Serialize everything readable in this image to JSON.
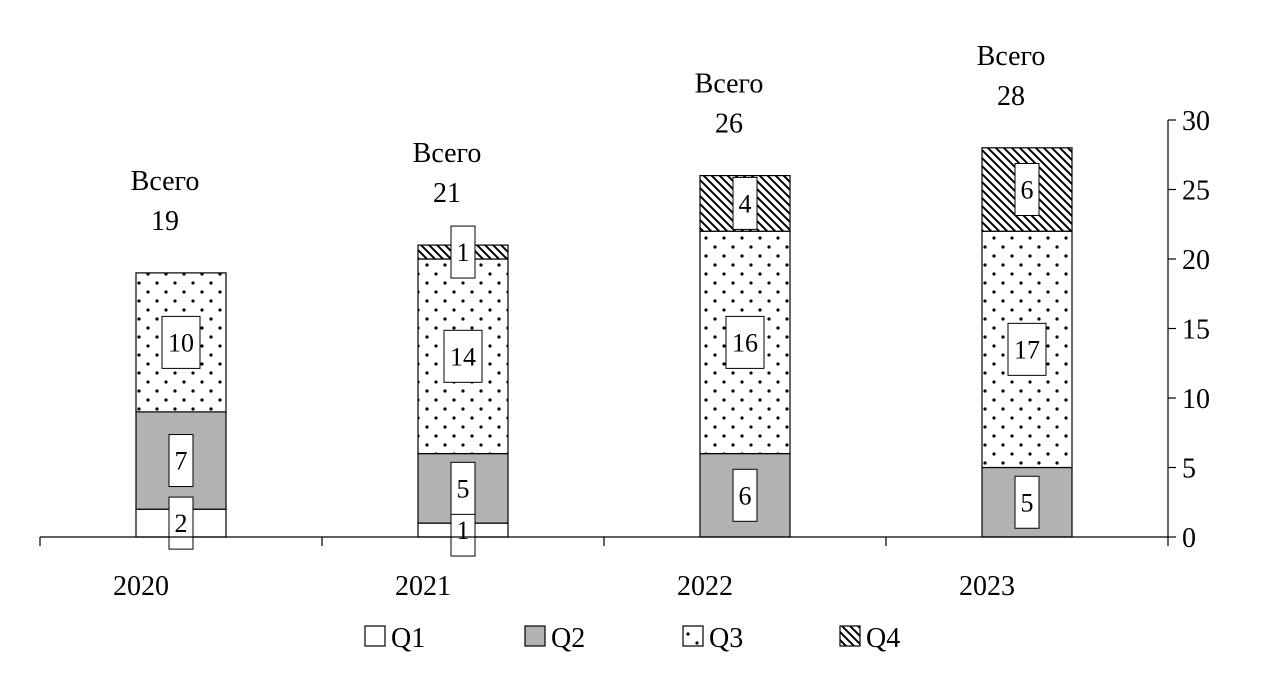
{
  "chart_data": {
    "type": "bar",
    "stacked": true,
    "categories": [
      "2020",
      "2021",
      "2022",
      "2023"
    ],
    "series": [
      {
        "name": "Q1",
        "values": [
          2,
          1,
          0,
          0
        ]
      },
      {
        "name": "Q2",
        "values": [
          7,
          5,
          6,
          5
        ]
      },
      {
        "name": "Q3",
        "values": [
          10,
          14,
          16,
          17
        ]
      },
      {
        "name": "Q4",
        "values": [
          0,
          1,
          4,
          6
        ]
      }
    ],
    "series_fills": {
      "Q1": "white",
      "Q2": "solid-gray",
      "Q3": "dots",
      "Q4": "diagonal-hatch"
    },
    "colors": {
      "q2_fill": "#b2b2b2",
      "ink": "#000000"
    },
    "totals": [
      {
        "label": "Всего",
        "value": "19"
      },
      {
        "label": "Всего",
        "value": "21"
      },
      {
        "label": "Всего",
        "value": "26"
      },
      {
        "label": "Всего",
        "value": "28"
      }
    ],
    "y_ticks": [
      "0",
      "5",
      "10",
      "15",
      "20",
      "25",
      "30"
    ],
    "ylim": [
      0,
      30
    ],
    "y_axis_side": "right",
    "legend": [
      "Q1",
      "Q2",
      "Q3",
      "Q4"
    ],
    "legend_position": "bottom",
    "grid": false
  }
}
